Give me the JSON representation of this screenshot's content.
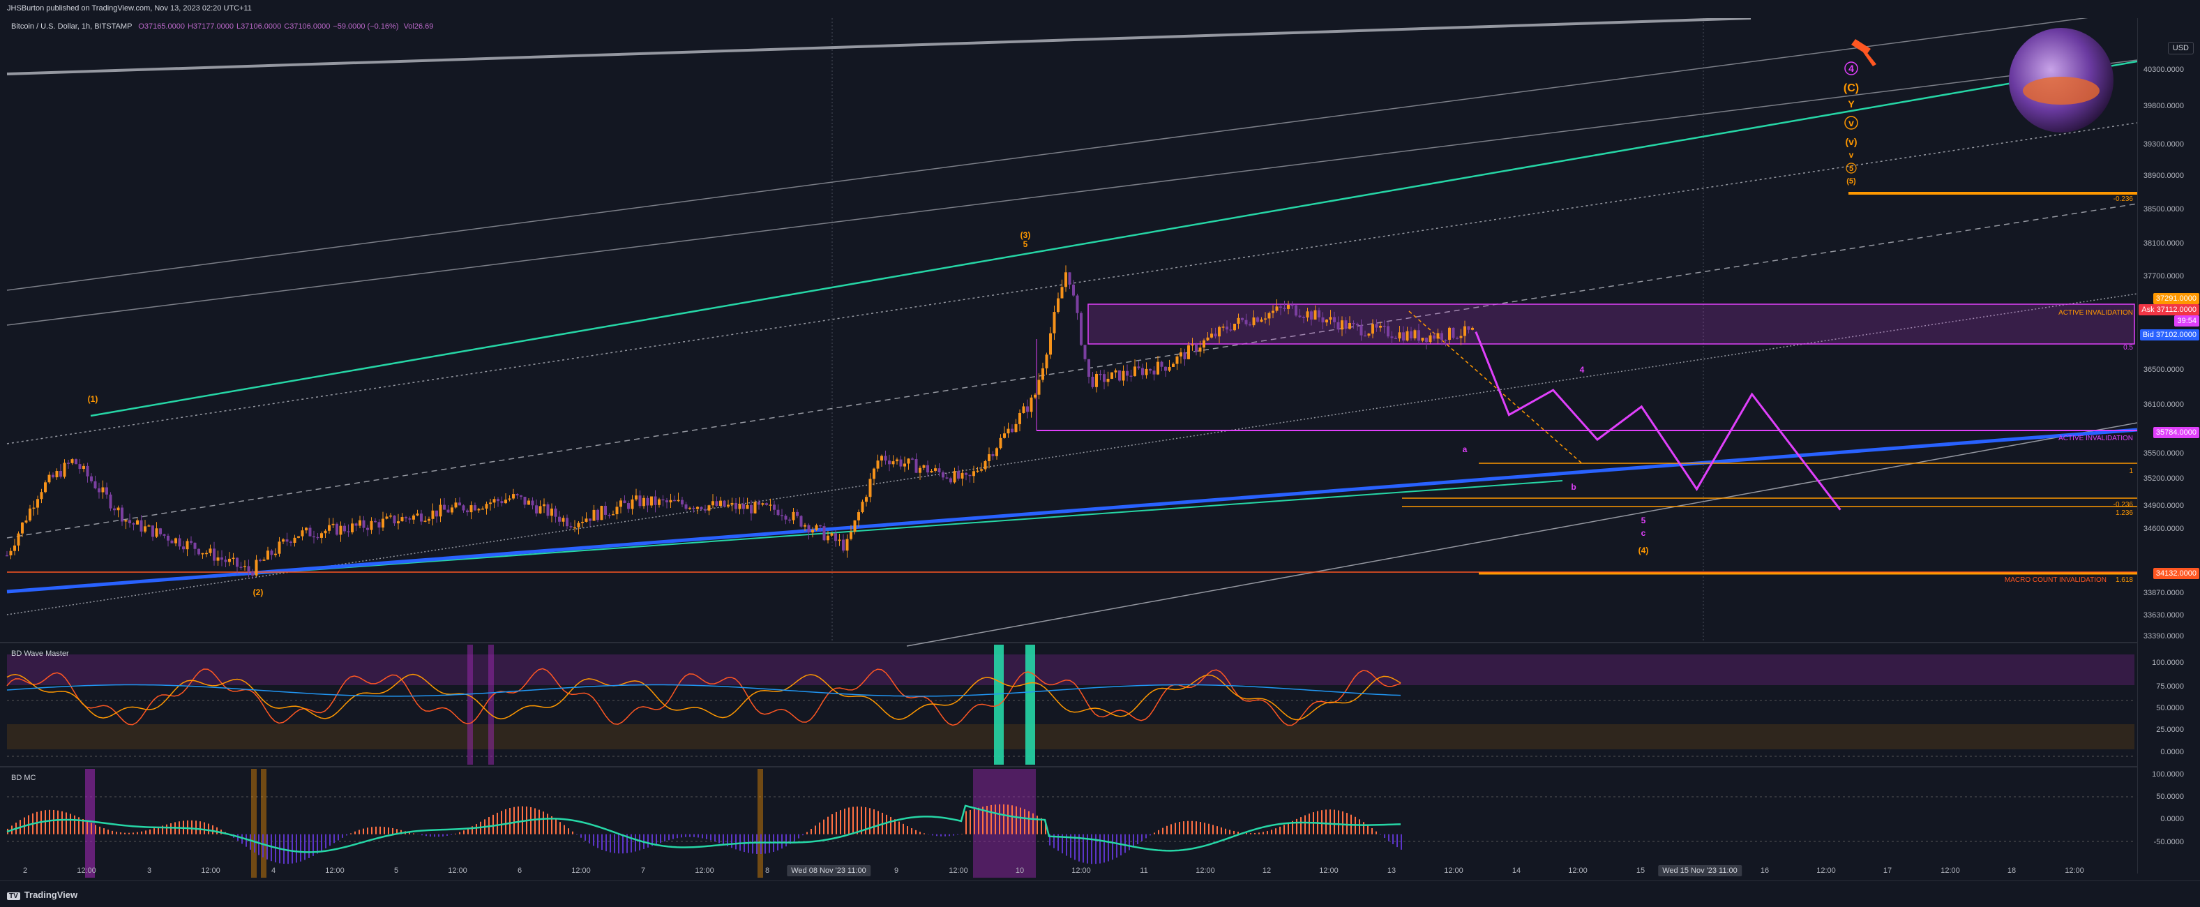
{
  "publish_line": "JHSBurton published on TradingView.com, Nov 13, 2023 02:20 UTC+11",
  "legend": {
    "symbol": "Bitcoin / U.S. Dollar, 1h, BITSTAMP",
    "open": "O37165.0000",
    "high": "H37177.0000",
    "low": "L37106.0000",
    "close": "C37106.0000",
    "change": "−59.0000 (−0.16%)",
    "volume": "Vol26.69"
  },
  "currency": "USD",
  "colors": {
    "background": "#131722",
    "up_candle": "#f7931a",
    "down_candle": "#7b3fa0",
    "channel_teal": "#26d6a6",
    "trend_blue": "#2962ff",
    "forecast_magenta": "#e040fb",
    "level_orange": "#ff9800",
    "level_red": "#ff5722"
  },
  "panels": {
    "oscillator_title": "BD Wave Master",
    "momentum_title": "BD MC"
  },
  "price_axis": {
    "ticks": [
      "40300.0000",
      "39800.0000",
      "39300.0000",
      "38900.0000",
      "38500.0000",
      "38100.0000",
      "37700.0000",
      "36500.0000",
      "36100.0000",
      "35500.0000",
      "35200.0000",
      "34900.0000",
      "34600.0000",
      "33870.0000",
      "33630.0000",
      "33390.0000"
    ],
    "tags": [
      {
        "label": "37291.0000",
        "color": "#ff9800"
      },
      {
        "label": "Ask 37112.0000",
        "color": "#f23645"
      },
      {
        "label": "39:54",
        "color": "#e040fb"
      },
      {
        "label": "Bid 37102.0000",
        "color": "#2962ff"
      },
      {
        "label": "35784.0000",
        "color": "#e040fb"
      },
      {
        "label": "34132.0000",
        "color": "#ff5722"
      }
    ]
  },
  "oscillator_axis": [
    "100.0000",
    "75.0000",
    "50.0000",
    "25.0000",
    "0.0000"
  ],
  "momentum_axis": [
    "100.0000",
    "50.0000",
    "0.0000",
    "-50.0000"
  ],
  "time_axis": {
    "labels": [
      "2",
      "12:00",
      "3",
      "12:00",
      "4",
      "12:00",
      "5",
      "12:00",
      "6",
      "12:00",
      "7",
      "12:00",
      "8",
      "9",
      "12:00",
      "10",
      "12:00",
      "11",
      "12:00",
      "12",
      "12:00",
      "13",
      "12:00",
      "14",
      "12:00",
      "15",
      "16",
      "12:00",
      "17",
      "12:00",
      "18",
      "12:00"
    ],
    "highlight_1": "Wed 08 Nov '23  11:00",
    "highlight_2": "Wed 15 Nov '23  11:00"
  },
  "annotations": {
    "active_invalidation_upper": "ACTIVE INVALIDATION",
    "active_invalidation_lower": "ACTIVE INVALIDATION",
    "macro_invalidation": "MACRO COUNT INVALIDATION",
    "fib_upper": "-0.236",
    "fib_1": "1",
    "fib_0236": "-0.236",
    "fib_1236": "1.236",
    "fib_1618": "1.618",
    "fib_05": "0.5",
    "wave_C_label": "(C)",
    "wave_Y_label": "Y",
    "wave_v_label": "v",
    "wave_pv_label": "(v)",
    "wave_v2_label": "v",
    "wave_5_label": "5",
    "wave_p5_label": "(5)",
    "wave_4_circle": "4",
    "wave_3_peak": "(3)",
    "wave_3_peak_sub": "5",
    "wave_1": "(1)",
    "wave_2": "(2)",
    "wave_4_target": "(4)",
    "wave_c_target": "c",
    "wave_5_target": "5",
    "wave_a_forecast": "a",
    "wave_b_forecast": "b",
    "wave_4_forecast": "4"
  },
  "footer_brand": "TradingView",
  "chart_data": {
    "type": "candlestick",
    "title": "Bitcoin / U.S. Dollar, 1h, BITSTAMP",
    "ylim": [
      33300,
      40600
    ],
    "x_range": [
      "2023-11-02",
      "2023-11-18"
    ],
    "trend": [
      {
        "x": "2023-11-02 00:00",
        "y": 34400
      },
      {
        "x": "2023-11-02 06:00",
        "y": 35200
      },
      {
        "x": "2023-11-02 12:00",
        "y": 35550
      },
      {
        "x": "2023-11-02 22:00",
        "y": 34800
      },
      {
        "x": "2023-11-03 10:00",
        "y": 34500
      },
      {
        "x": "2023-11-03 20:00",
        "y": 34200
      },
      {
        "x": "2023-11-04 04:00",
        "y": 34650
      },
      {
        "x": "2023-11-04 16:00",
        "y": 34750
      },
      {
        "x": "2023-11-05 08:00",
        "y": 34950
      },
      {
        "x": "2023-11-05 20:00",
        "y": 35100
      },
      {
        "x": "2023-11-06 06:00",
        "y": 34800
      },
      {
        "x": "2023-11-06 18:00",
        "y": 35050
      },
      {
        "x": "2023-11-07 08:00",
        "y": 35000
      },
      {
        "x": "2023-11-07 20:00",
        "y": 34950
      },
      {
        "x": "2023-11-08 08:00",
        "y": 34500
      },
      {
        "x": "2023-11-08 14:00",
        "y": 35600
      },
      {
        "x": "2023-11-09 06:00",
        "y": 35300
      },
      {
        "x": "2023-11-09 18:00",
        "y": 36300
      },
      {
        "x": "2023-11-10 00:00",
        "y": 37900
      },
      {
        "x": "2023-11-10 04:00",
        "y": 36500
      },
      {
        "x": "2023-11-10 18:00",
        "y": 36700
      },
      {
        "x": "2023-11-11 06:00",
        "y": 37200
      },
      {
        "x": "2023-11-11 16:00",
        "y": 37400
      },
      {
        "x": "2023-11-12 04:00",
        "y": 37150
      },
      {
        "x": "2023-11-12 16:00",
        "y": 37050
      },
      {
        "x": "2023-11-13 02:00",
        "y": 37106
      }
    ],
    "forecast_path": [
      {
        "x": "2023-11-13 02:00",
        "y": 37106
      },
      {
        "x": "2023-11-13 08:00",
        "y": 36100
      },
      {
        "x": "2023-11-13 16:00",
        "y": 36400
      },
      {
        "x": "2023-11-14 00:00",
        "y": 35800
      },
      {
        "x": "2023-11-14 08:00",
        "y": 36200
      },
      {
        "x": "2023-11-14 18:00",
        "y": 35200
      },
      {
        "x": "2023-11-15 04:00",
        "y": 36350
      },
      {
        "x": "2023-11-15 20:00",
        "y": 34950
      }
    ],
    "levels": [
      {
        "label": "ACTIVE INVALIDATION",
        "y": 37291
      },
      {
        "label": "ACTIVE INVALIDATION",
        "y": 35784
      },
      {
        "label": "MACRO COUNT INVALIDATION",
        "y": 34132
      }
    ],
    "oscillator_range": [
      0,
      100
    ],
    "momentum_range": [
      -80,
      110
    ]
  }
}
